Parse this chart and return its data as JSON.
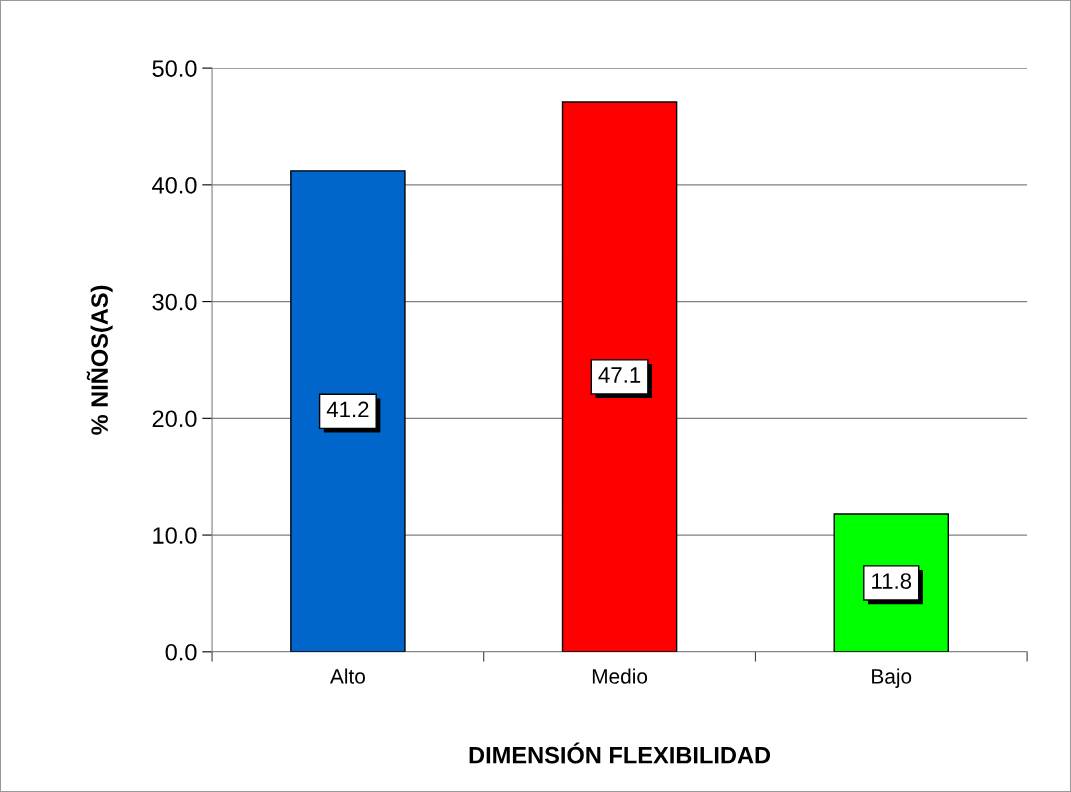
{
  "chart_data": {
    "type": "bar",
    "xlabel": "DIMENSIÓN FLEXIBILIDAD",
    "ylabel": "% NIÑOS(AS)",
    "categories": [
      "Alto",
      "Medio",
      "Bajo"
    ],
    "values": [
      41.2,
      47.1,
      11.8
    ],
    "colors": [
      "#0066cc",
      "#ff0000",
      "#00ff00"
    ],
    "ylim": [
      0,
      50
    ],
    "yticks": [
      {
        "value": 0,
        "label": "0.0"
      },
      {
        "value": 10,
        "label": "10.0"
      },
      {
        "value": 20,
        "label": "20.0"
      },
      {
        "value": 30,
        "label": "30.0"
      },
      {
        "value": 40,
        "label": "40.0"
      },
      {
        "value": 50,
        "label": "50.0"
      }
    ],
    "grid": "y",
    "data_labels": true,
    "legend": false
  }
}
